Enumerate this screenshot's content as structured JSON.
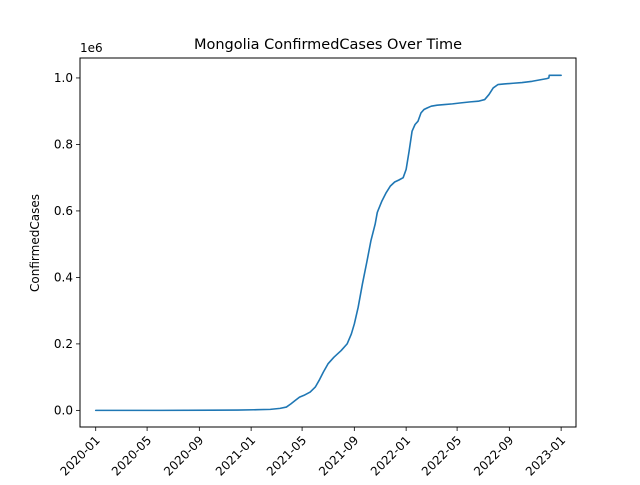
{
  "chart_data": {
    "type": "line",
    "title": "Mongolia  ConfirmedCases Over Time",
    "xlabel": "",
    "ylabel": "ConfirmedCases",
    "y_offset_label": "1e6",
    "grid": false,
    "legend": "none",
    "line_color": "#1f77b4",
    "xlim": [
      "2019-11-25",
      "2023-02-05"
    ],
    "ylim": [
      -0.05,
      1.06
    ],
    "x_ticks": [
      {
        "date": "2020-01-01",
        "label": "2020-01"
      },
      {
        "date": "2020-05-01",
        "label": "2020-05"
      },
      {
        "date": "2020-09-01",
        "label": "2020-09"
      },
      {
        "date": "2021-01-01",
        "label": "2021-01"
      },
      {
        "date": "2021-05-01",
        "label": "2021-05"
      },
      {
        "date": "2021-09-01",
        "label": "2021-09"
      },
      {
        "date": "2022-01-01",
        "label": "2022-01"
      },
      {
        "date": "2022-05-01",
        "label": "2022-05"
      },
      {
        "date": "2022-09-01",
        "label": "2022-09"
      },
      {
        "date": "2023-01-01",
        "label": "2023-01"
      }
    ],
    "y_ticks": [
      {
        "value": 0.0,
        "label": "0.0"
      },
      {
        "value": 0.2,
        "label": "0.2"
      },
      {
        "value": 0.4,
        "label": "0.4"
      },
      {
        "value": 0.6,
        "label": "0.6"
      },
      {
        "value": 0.8,
        "label": "0.8"
      },
      {
        "value": 1.0,
        "label": "1.0"
      }
    ],
    "series": [
      {
        "x": [
          "2020-01-01",
          "2020-06-01",
          "2020-10-01",
          "2020-12-01",
          "2021-01-15",
          "2021-02-15",
          "2021-03-10",
          "2021-03-25",
          "2021-04-05",
          "2021-04-15",
          "2021-04-25",
          "2021-05-05",
          "2021-05-20",
          "2021-06-01",
          "2021-06-10",
          "2021-06-20",
          "2021-07-01",
          "2021-07-15",
          "2021-08-01",
          "2021-08-15",
          "2021-08-25",
          "2021-09-01",
          "2021-09-10",
          "2021-09-20",
          "2021-10-01",
          "2021-10-10",
          "2021-10-20",
          "2021-10-25",
          "2021-10-28",
          "2021-11-05",
          "2021-11-15",
          "2021-11-25",
          "2021-12-05",
          "2021-12-15",
          "2021-12-25",
          "2022-01-01",
          "2022-01-08",
          "2022-01-15",
          "2022-01-22",
          "2022-01-29",
          "2022-02-05",
          "2022-02-12",
          "2022-02-20",
          "2022-03-01",
          "2022-03-15",
          "2022-04-01",
          "2022-04-20",
          "2022-05-10",
          "2022-06-01",
          "2022-06-20",
          "2022-07-05",
          "2022-07-15",
          "2022-07-25",
          "2022-08-05",
          "2022-08-20",
          "2022-09-10",
          "2022-10-01",
          "2022-10-25",
          "2022-11-15",
          "2022-11-28",
          "2022-12-03",
          "2022-12-04",
          "2022-12-20",
          "2023-01-01"
        ],
        "y": [
          0,
          0,
          0.0005,
          0.001,
          0.002,
          0.003,
          0.006,
          0.01,
          0.02,
          0.03,
          0.04,
          0.045,
          0.055,
          0.07,
          0.09,
          0.115,
          0.14,
          0.16,
          0.18,
          0.2,
          0.23,
          0.26,
          0.31,
          0.38,
          0.45,
          0.51,
          0.56,
          0.595,
          0.605,
          0.63,
          0.655,
          0.675,
          0.687,
          0.693,
          0.7,
          0.725,
          0.78,
          0.84,
          0.86,
          0.87,
          0.895,
          0.905,
          0.91,
          0.915,
          0.918,
          0.92,
          0.922,
          0.925,
          0.928,
          0.93,
          0.935,
          0.95,
          0.97,
          0.98,
          0.982,
          0.984,
          0.986,
          0.99,
          0.995,
          0.998,
          1.0,
          1.008,
          1.008,
          1.008
        ]
      }
    ]
  }
}
